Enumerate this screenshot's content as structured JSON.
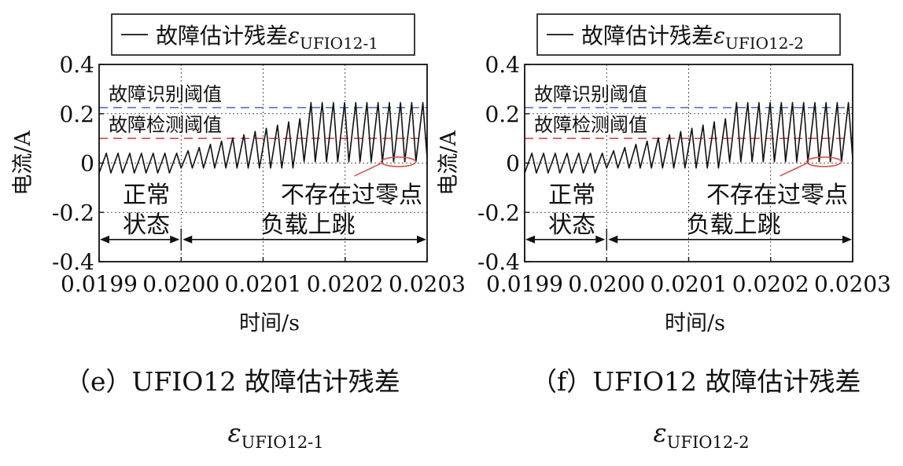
{
  "chart_data": [
    {
      "type": "line",
      "title": "",
      "xlabel": "时间/s",
      "ylabel": "电流/A",
      "xlim": [
        0.0199,
        0.0203
      ],
      "ylim": [
        -0.4,
        0.4
      ],
      "x_ticks": [
        "0.0199",
        "0.0200",
        "0.0201",
        "0.0202",
        "0.0203"
      ],
      "y_ticks": [
        "0.4",
        "0.2",
        "0",
        "-0.2",
        "-0.4"
      ],
      "grid": true,
      "legend": {
        "text": "故障估计残差",
        "symbol": "ε",
        "subscript": "UFIO12-1",
        "placement": "top"
      },
      "series": [
        {
          "name": "故障估计残差εUFIO12-1",
          "color": "#111111",
          "period": 1.37e-05,
          "segments": [
            {
              "x_start": 0.0199,
              "x_end": 0.02,
              "low": -0.04,
              "high": 0.04
            },
            {
              "x_start": 0.02,
              "x_end": 0.02015,
              "low": -0.02,
              "high_start": 0.05,
              "high_end": 0.18
            },
            {
              "x_start": 0.02015,
              "x_end": 0.0203,
              "low": 0.005,
              "high": 0.245
            }
          ]
        }
      ],
      "thresholds": [
        {
          "label": "故障识别阈值",
          "value": 0.225,
          "color": "#5b7fc4",
          "style": "dashed"
        },
        {
          "label": "故障检测阈值",
          "value": 0.1,
          "color": "#d9534f",
          "style": "dashed"
        }
      ],
      "annotations": {
        "normal": [
          "正常",
          "状态"
        ],
        "load": "负载上跳",
        "no_zero": "不存在过零点"
      },
      "caption": {
        "label": "（e）UFIO12 故障估计残差",
        "symbol": "ε",
        "subscript": "UFIO12-1"
      }
    },
    {
      "type": "line",
      "title": "",
      "xlabel": "时间/s",
      "ylabel": "电流/A",
      "xlim": [
        0.0199,
        0.0203
      ],
      "ylim": [
        -0.4,
        0.4
      ],
      "x_ticks": [
        "0.0199",
        "0.0200",
        "0.0201",
        "0.0202",
        "0.0203"
      ],
      "y_ticks": [
        "0.4",
        "0.2",
        "0",
        "-0.2",
        "-0.4"
      ],
      "grid": true,
      "legend": {
        "text": "故障估计残差",
        "symbol": "ε",
        "subscript": "UFIO12-2",
        "placement": "top"
      },
      "series": [
        {
          "name": "故障估计残差εUFIO12-2",
          "color": "#111111",
          "period": 1.37e-05,
          "segments": [
            {
              "x_start": 0.0199,
              "x_end": 0.02,
              "low": -0.04,
              "high": 0.04
            },
            {
              "x_start": 0.02,
              "x_end": 0.02015,
              "low": -0.02,
              "high_start": 0.05,
              "high_end": 0.18
            },
            {
              "x_start": 0.02015,
              "x_end": 0.0203,
              "low": 0.005,
              "high": 0.245
            }
          ]
        }
      ],
      "thresholds": [
        {
          "label": "故障识别阈值",
          "value": 0.225,
          "color": "#5b7fc4",
          "style": "dashed"
        },
        {
          "label": "故障检测阈值",
          "value": 0.1,
          "color": "#d9534f",
          "style": "dashed"
        }
      ],
      "annotations": {
        "normal": [
          "正常",
          "状态"
        ],
        "load": "负载上跳",
        "no_zero": "不存在过零点"
      },
      "caption": {
        "label": "（f）UFIO12 故障估计残差",
        "symbol": "ε",
        "subscript": "UFIO12-2"
      }
    }
  ]
}
